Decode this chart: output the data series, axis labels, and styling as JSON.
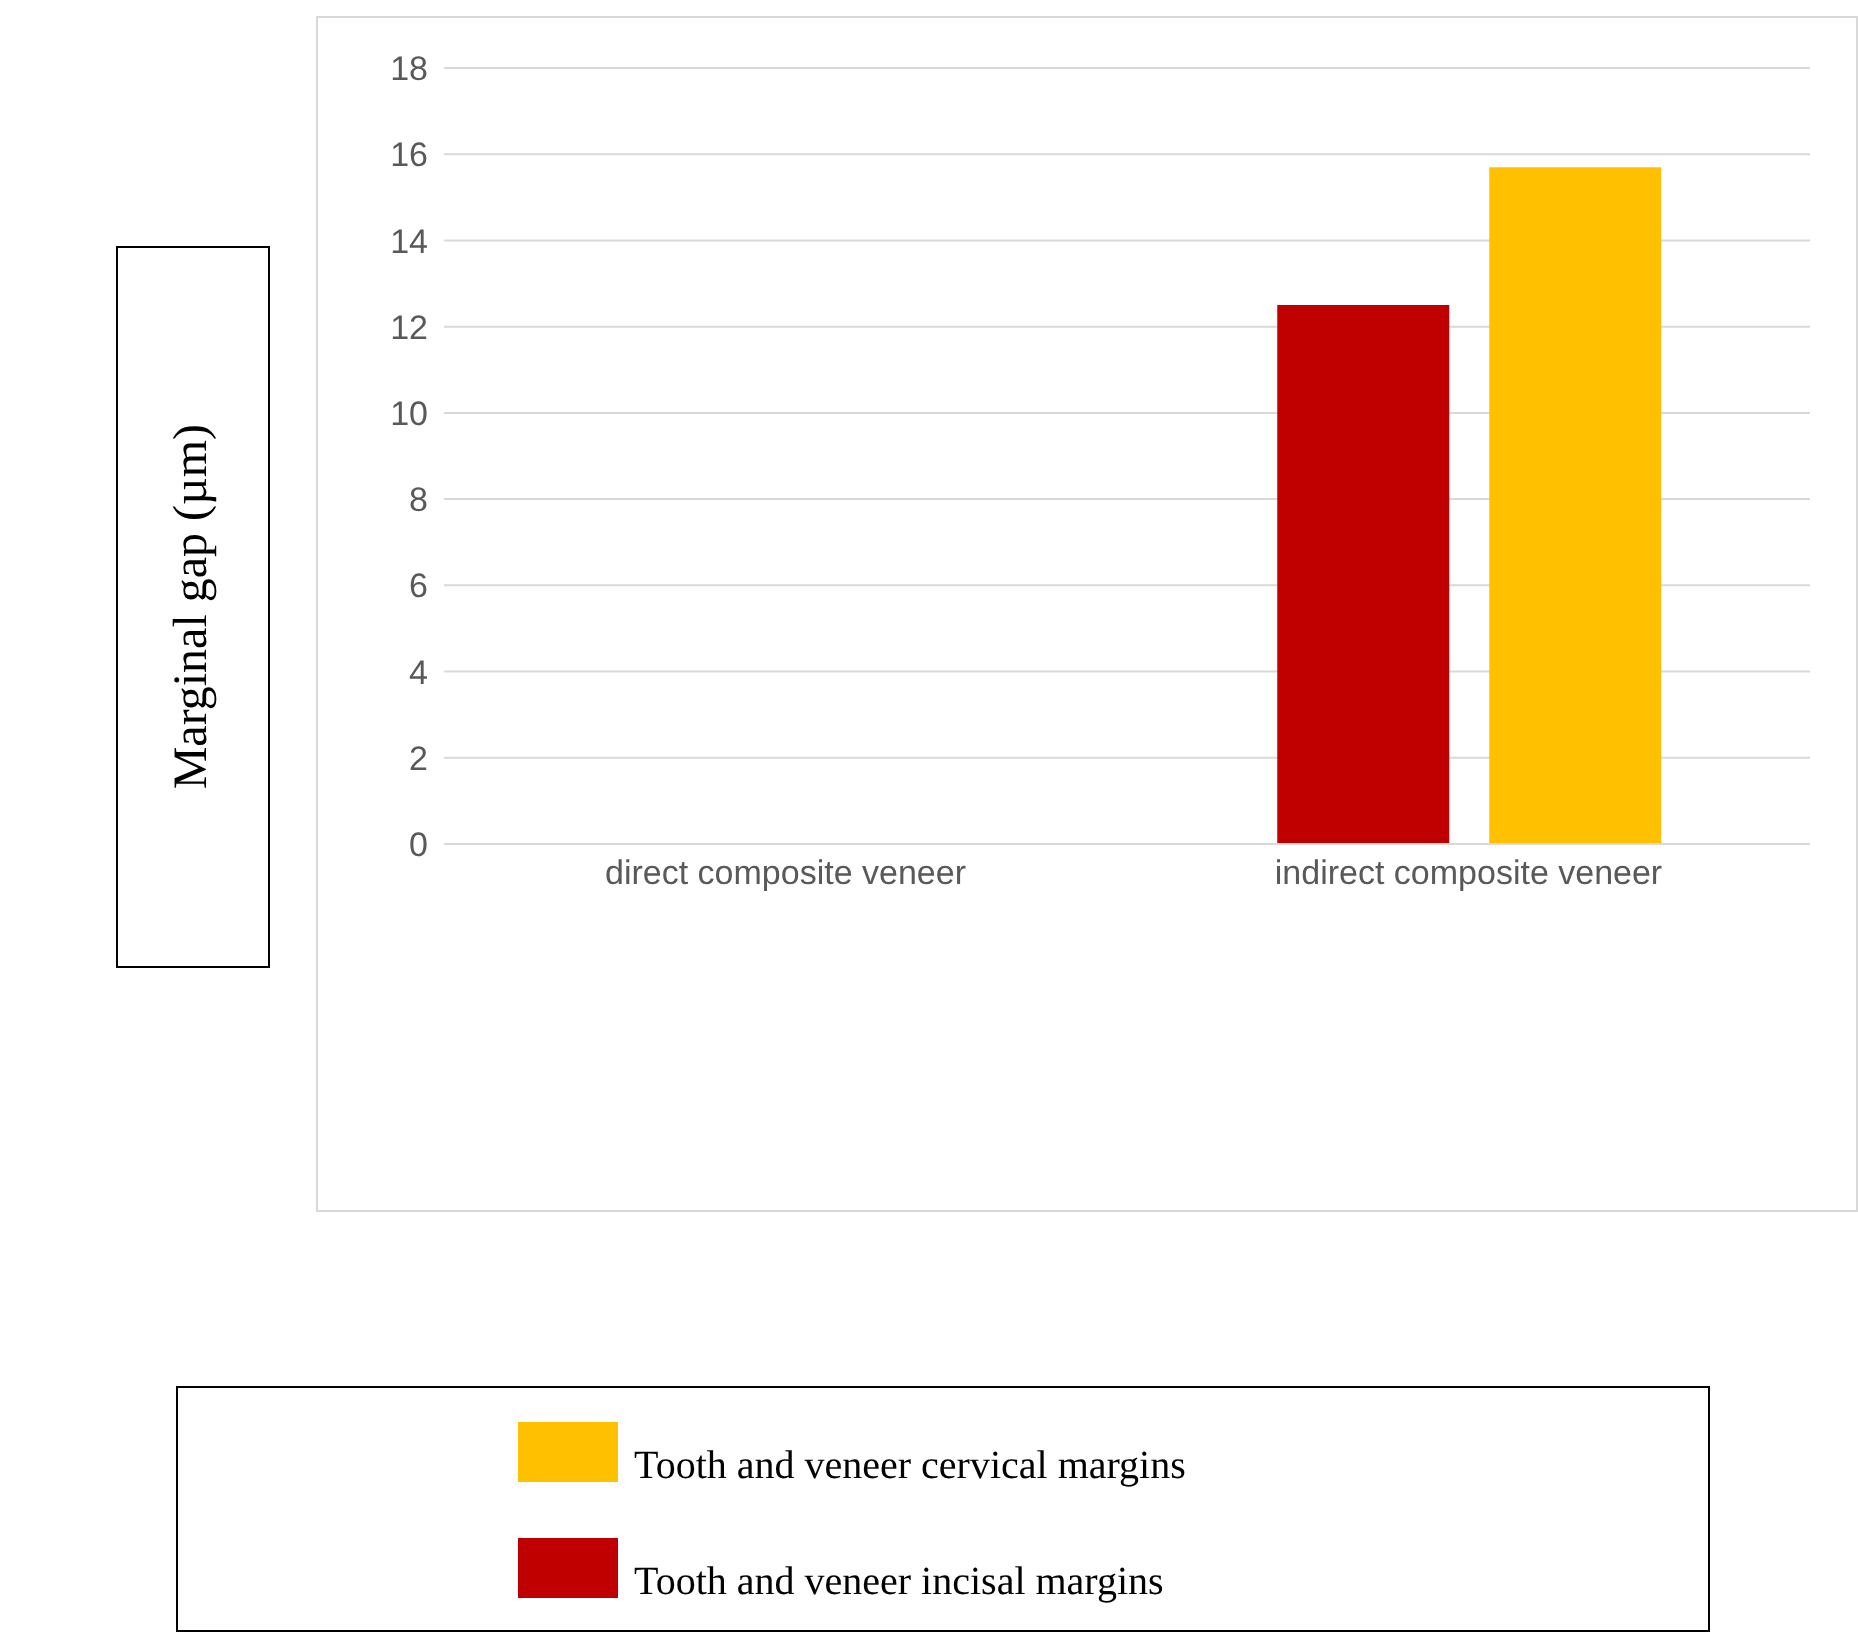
{
  "chart_data": {
    "type": "bar",
    "ylabel": "Marginal gap (µm)",
    "categories": [
      "direct composite veneer",
      "indirect composite veneer"
    ],
    "series": [
      {
        "name": "Tooth and veneer incisal margins",
        "color": "#c00000",
        "values": [
          0,
          12.5
        ]
      },
      {
        "name": "Tooth and veneer cervical margins",
        "color": "#ffc000",
        "values": [
          0,
          15.7
        ]
      }
    ],
    "ylim": [
      0,
      18
    ],
    "yticks": [
      0,
      2,
      4,
      6,
      8,
      10,
      12,
      14,
      16,
      18
    ],
    "grid": "y",
    "legend": "bottom"
  }
}
